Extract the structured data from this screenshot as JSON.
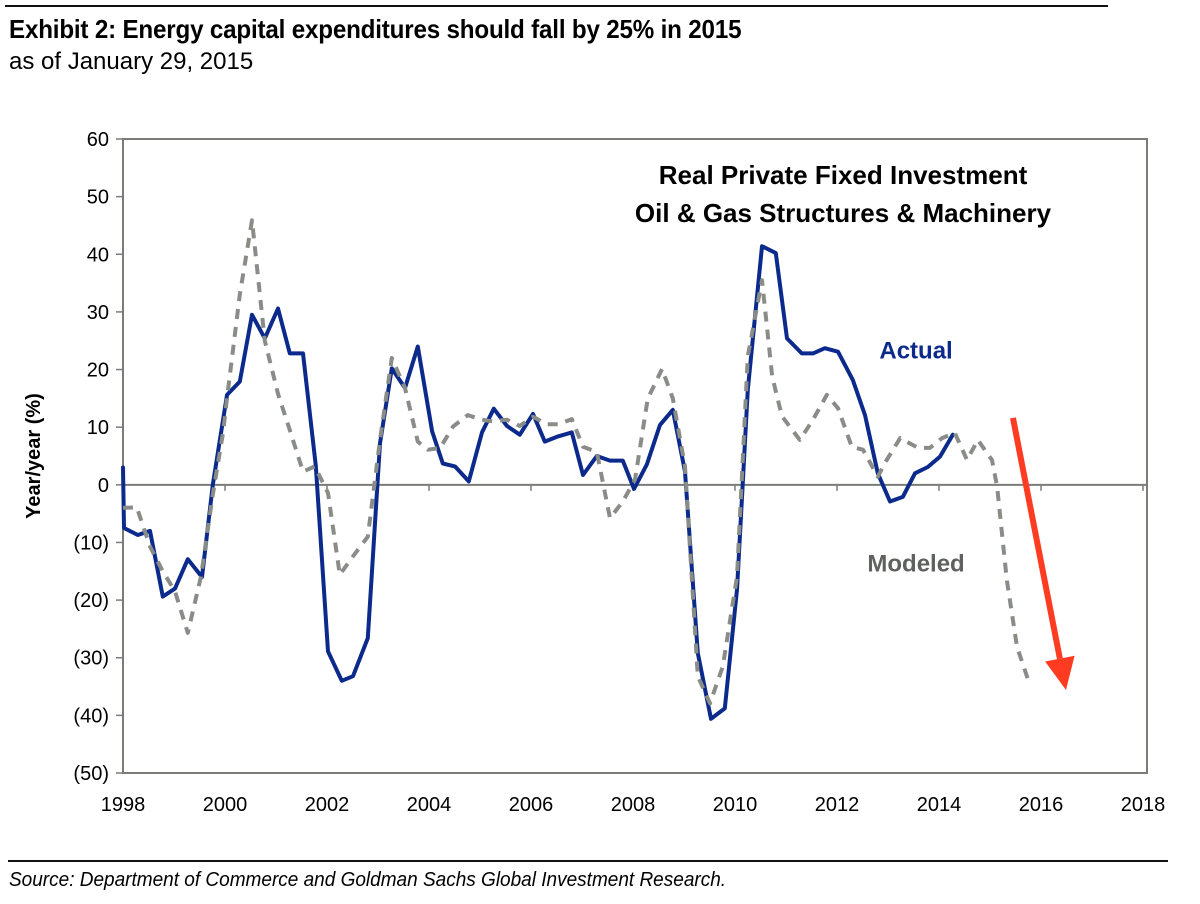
{
  "header": {
    "title": "Exhibit 2: Energy capital expenditures should fall by 25% in 2015",
    "subtitle": "as of January 29, 2015"
  },
  "footer": {
    "source": "Source: Department of Commerce and Goldman Sachs Global Investment Research."
  },
  "chart_data": {
    "type": "line",
    "title": "Real Private Fixed Investment",
    "subtitle": "Oil & Gas Structures & Machinery",
    "xlabel": "",
    "ylabel": "Year/year (%)",
    "xlim": [
      1998,
      2018
    ],
    "ylim": [
      -50,
      60
    ],
    "x_ticks": [
      1998,
      2000,
      2002,
      2004,
      2006,
      2008,
      2010,
      2012,
      2014,
      2016,
      2018
    ],
    "x_tick_labels": [
      "1998",
      "2000",
      "2002",
      "2004",
      "2006",
      "2008",
      "2010",
      "2012",
      "2014",
      "2016",
      "2018"
    ],
    "y_ticks": [
      60,
      50,
      40,
      30,
      20,
      10,
      0,
      -10,
      -20,
      -30,
      -40,
      -50
    ],
    "y_tick_labels": [
      "60",
      "50",
      "40",
      "30",
      "20",
      "10",
      "0",
      "(10)",
      "(20)",
      "(30)",
      "(40)",
      "(50)"
    ],
    "grid": false,
    "legend": "inline labels",
    "series": [
      {
        "name": "Actual",
        "color": "#0B2A8C",
        "style": "solid",
        "label_position": [
          2013.55,
          23.5
        ],
        "points": [
          [
            1998.0,
            3
          ],
          [
            1998.02,
            -7.5
          ],
          [
            1998.29,
            -8.7
          ],
          [
            1998.53,
            -8
          ],
          [
            1998.78,
            -19.4
          ],
          [
            1999.02,
            -18
          ],
          [
            1999.27,
            -12.9
          ],
          [
            1999.55,
            -16
          ],
          [
            1999.76,
            0
          ],
          [
            2000.04,
            15.6
          ],
          [
            2000.29,
            17.9
          ],
          [
            2000.53,
            29.5
          ],
          [
            2000.78,
            25.4
          ],
          [
            2001.04,
            30.6
          ],
          [
            2001.27,
            22.8
          ],
          [
            2001.53,
            22.8
          ],
          [
            2001.78,
            3.3
          ],
          [
            2002.02,
            -28.9
          ],
          [
            2002.29,
            -34
          ],
          [
            2002.51,
            -33.2
          ],
          [
            2002.8,
            -26.6
          ],
          [
            2003.04,
            7.2
          ],
          [
            2003.27,
            20.2
          ],
          [
            2003.53,
            16.8
          ],
          [
            2003.78,
            24
          ],
          [
            2004.06,
            9.3
          ],
          [
            2004.27,
            3.7
          ],
          [
            2004.51,
            3.2
          ],
          [
            2004.78,
            0.6
          ],
          [
            2005.04,
            9.1
          ],
          [
            2005.27,
            13.2
          ],
          [
            2005.53,
            10.2
          ],
          [
            2005.78,
            8.7
          ],
          [
            2006.04,
            12.3
          ],
          [
            2006.27,
            7.5
          ],
          [
            2006.53,
            8.4
          ],
          [
            2006.8,
            9.1
          ],
          [
            2007.02,
            1.7
          ],
          [
            2007.29,
            5
          ],
          [
            2007.55,
            4.2
          ],
          [
            2007.8,
            4.2
          ],
          [
            2008.02,
            -0.7
          ],
          [
            2008.27,
            3.5
          ],
          [
            2008.53,
            10.4
          ],
          [
            2008.78,
            13
          ],
          [
            2009.02,
            2.3
          ],
          [
            2009.27,
            -29.2
          ],
          [
            2009.53,
            -40.6
          ],
          [
            2009.8,
            -38.8
          ],
          [
            2010.04,
            -18.2
          ],
          [
            2010.25,
            16.5
          ],
          [
            2010.53,
            41.4
          ],
          [
            2010.8,
            40.2
          ],
          [
            2011.02,
            25.4
          ],
          [
            2011.31,
            22.8
          ],
          [
            2011.53,
            22.8
          ],
          [
            2011.76,
            23.7
          ],
          [
            2012.02,
            23.1
          ],
          [
            2012.31,
            18.2
          ],
          [
            2012.55,
            12.1
          ],
          [
            2012.8,
            2
          ],
          [
            2013.04,
            -2.9
          ],
          [
            2013.29,
            -2.1
          ],
          [
            2013.53,
            2
          ],
          [
            2013.78,
            3.1
          ],
          [
            2014.02,
            4.9
          ],
          [
            2014.27,
            8.7
          ]
        ]
      },
      {
        "name": "Modeled",
        "color": "#8A8C88",
        "style": "dashed",
        "label_position": [
          2013.55,
          -13.5
        ],
        "points": [
          [
            1998.0,
            -4
          ],
          [
            1998.27,
            -3.9
          ],
          [
            1998.53,
            -10.7
          ],
          [
            1998.78,
            -15
          ],
          [
            1999.02,
            -18.5
          ],
          [
            1999.27,
            -25.7
          ],
          [
            1999.53,
            -15.9
          ],
          [
            1999.76,
            -1.7
          ],
          [
            1999.96,
            9
          ],
          [
            2000.04,
            15
          ],
          [
            2000.29,
            33
          ],
          [
            2000.53,
            45.9
          ],
          [
            2000.78,
            25
          ],
          [
            2001.04,
            15.8
          ],
          [
            2001.27,
            9.5
          ],
          [
            2001.53,
            2.3
          ],
          [
            2001.76,
            3.2
          ],
          [
            2002.02,
            -1.4
          ],
          [
            2002.25,
            -15.6
          ],
          [
            2002.51,
            -12.4
          ],
          [
            2002.8,
            -9
          ],
          [
            2003.04,
            7.8
          ],
          [
            2003.27,
            22
          ],
          [
            2003.53,
            16.8
          ],
          [
            2003.78,
            7.5
          ],
          [
            2003.98,
            6.1
          ],
          [
            2004.22,
            6.4
          ],
          [
            2004.47,
            10.1
          ],
          [
            2004.76,
            12.1
          ],
          [
            2005.04,
            11.3
          ],
          [
            2005.25,
            11
          ],
          [
            2005.53,
            11.3
          ],
          [
            2005.78,
            10.2
          ],
          [
            2006.04,
            11.8
          ],
          [
            2006.31,
            10.5
          ],
          [
            2006.53,
            10.5
          ],
          [
            2006.8,
            11.4
          ],
          [
            2007.02,
            6.6
          ],
          [
            2007.29,
            5.7
          ],
          [
            2007.55,
            -5.8
          ],
          [
            2007.8,
            -2.9
          ],
          [
            2008.04,
            0.9
          ],
          [
            2008.29,
            15
          ],
          [
            2008.57,
            20.1
          ],
          [
            2008.78,
            15
          ],
          [
            2009.02,
            3.2
          ],
          [
            2009.27,
            -33.2
          ],
          [
            2009.51,
            -37.9
          ],
          [
            2009.76,
            -31.5
          ],
          [
            2010.04,
            -15.9
          ],
          [
            2010.25,
            22.3
          ],
          [
            2010.53,
            35.5
          ],
          [
            2010.73,
            18.8
          ],
          [
            2010.92,
            11.9
          ],
          [
            2011.27,
            7.8
          ],
          [
            2011.53,
            11.3
          ],
          [
            2011.8,
            15.6
          ],
          [
            2012.02,
            13.3
          ],
          [
            2012.29,
            6.6
          ],
          [
            2012.51,
            6.1
          ],
          [
            2012.8,
            1.4
          ],
          [
            2012.94,
            3.8
          ],
          [
            2013.24,
            8.1
          ],
          [
            2013.59,
            6.4
          ],
          [
            2013.82,
            6.4
          ],
          [
            2014.06,
            8.1
          ],
          [
            2014.31,
            9
          ],
          [
            2014.55,
            4.3
          ],
          [
            2014.76,
            7.8
          ],
          [
            2015.04,
            4.3
          ],
          [
            2015.14,
            -0.3
          ],
          [
            2015.33,
            -16.5
          ],
          [
            2015.53,
            -28.1
          ],
          [
            2015.78,
            -34.7
          ]
        ]
      }
    ],
    "annotations": [
      {
        "type": "arrow",
        "description": "downward trend arrow",
        "color": "#FF3B22",
        "from": [
          2015.45,
          11.6
        ],
        "to": [
          2016.49,
          -35.6
        ]
      }
    ]
  }
}
